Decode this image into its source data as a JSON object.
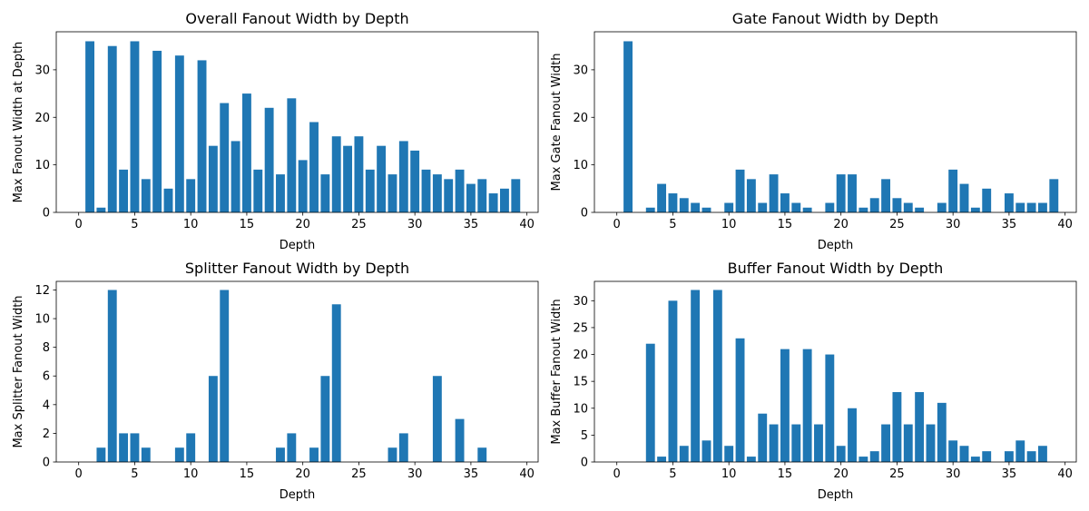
{
  "chart_data": [
    {
      "type": "bar",
      "title": "Overall Fanout Width by Depth",
      "xlabel": "Depth",
      "ylabel": "Max Fanout Width at Depth",
      "xlim": [
        -2,
        41
      ],
      "ylim": [
        0,
        38
      ],
      "xticks": [
        0,
        5,
        10,
        15,
        20,
        25,
        30,
        35,
        40
      ],
      "yticks": [
        0,
        10,
        20,
        30
      ],
      "x": [
        1,
        2,
        3,
        4,
        5,
        6,
        7,
        8,
        9,
        10,
        11,
        12,
        13,
        14,
        15,
        16,
        17,
        18,
        19,
        20,
        21,
        22,
        23,
        24,
        25,
        26,
        27,
        28,
        29,
        30,
        31,
        32,
        33,
        34,
        35,
        36,
        37,
        38,
        39
      ],
      "values": [
        36,
        1,
        35,
        9,
        36,
        7,
        34,
        5,
        33,
        7,
        32,
        14,
        23,
        15,
        25,
        9,
        22,
        8,
        24,
        11,
        19,
        8,
        16,
        14,
        16,
        9,
        14,
        8,
        15,
        13,
        9,
        8,
        7,
        9,
        6,
        7,
        4,
        5,
        7
      ],
      "color": "#1f77b4"
    },
    {
      "type": "bar",
      "title": "Gate Fanout Width by Depth",
      "xlabel": "Depth",
      "ylabel": "Max Gate Fanout Width",
      "xlim": [
        -2,
        41
      ],
      "ylim": [
        0,
        38
      ],
      "xticks": [
        0,
        5,
        10,
        15,
        20,
        25,
        30,
        35,
        40
      ],
      "yticks": [
        0,
        10,
        20,
        30
      ],
      "x": [
        1,
        2,
        3,
        4,
        5,
        6,
        7,
        8,
        9,
        10,
        11,
        12,
        13,
        14,
        15,
        16,
        17,
        18,
        19,
        20,
        21,
        22,
        23,
        24,
        25,
        26,
        27,
        28,
        29,
        30,
        31,
        32,
        33,
        34,
        35,
        36,
        37,
        38,
        39
      ],
      "values": [
        36,
        0,
        1,
        6,
        4,
        3,
        2,
        1,
        0,
        2,
        9,
        7,
        2,
        8,
        4,
        2,
        1,
        0,
        2,
        8,
        8,
        1,
        3,
        7,
        3,
        2,
        1,
        0,
        2,
        9,
        6,
        1,
        5,
        0,
        4,
        2,
        2,
        2,
        7
      ],
      "color": "#1f77b4"
    },
    {
      "type": "bar",
      "title": "Splitter Fanout Width by Depth",
      "xlabel": "Depth",
      "ylabel": "Max Splitter Fanout Width",
      "xlim": [
        -2,
        41
      ],
      "ylim": [
        0,
        12.6
      ],
      "xticks": [
        0,
        5,
        10,
        15,
        20,
        25,
        30,
        35,
        40
      ],
      "yticks": [
        0,
        2,
        4,
        6,
        8,
        10,
        12
      ],
      "x": [
        1,
        2,
        3,
        4,
        5,
        6,
        7,
        8,
        9,
        10,
        11,
        12,
        13,
        14,
        15,
        16,
        17,
        18,
        19,
        20,
        21,
        22,
        23,
        24,
        25,
        26,
        27,
        28,
        29,
        30,
        31,
        32,
        33,
        34,
        35,
        36,
        37,
        38,
        39
      ],
      "values": [
        0,
        1,
        12,
        2,
        2,
        1,
        0,
        0,
        1,
        2,
        0,
        6,
        12,
        0,
        0,
        0,
        0,
        1,
        2,
        0,
        1,
        6,
        11,
        0,
        0,
        0,
        0,
        1,
        2,
        0,
        0,
        6,
        0,
        3,
        0,
        1,
        0,
        0,
        0
      ],
      "color": "#1f77b4"
    },
    {
      "type": "bar",
      "title": "Buffer Fanout Width by Depth",
      "xlabel": "Depth",
      "ylabel": "Max Buffer Fanout Width",
      "xlim": [
        -2,
        41
      ],
      "ylim": [
        0,
        33.6
      ],
      "xticks": [
        0,
        5,
        10,
        15,
        20,
        25,
        30,
        35,
        40
      ],
      "yticks": [
        0,
        5,
        10,
        15,
        20,
        25,
        30
      ],
      "x": [
        1,
        2,
        3,
        4,
        5,
        6,
        7,
        8,
        9,
        10,
        11,
        12,
        13,
        14,
        15,
        16,
        17,
        18,
        19,
        20,
        21,
        22,
        23,
        24,
        25,
        26,
        27,
        28,
        29,
        30,
        31,
        32,
        33,
        34,
        35,
        36,
        37,
        38,
        39
      ],
      "values": [
        0,
        0,
        22,
        1,
        30,
        3,
        32,
        4,
        32,
        3,
        23,
        1,
        9,
        7,
        21,
        7,
        21,
        7,
        20,
        3,
        10,
        1,
        2,
        7,
        13,
        7,
        13,
        7,
        11,
        4,
        3,
        1,
        2,
        0,
        2,
        4,
        2,
        3,
        0
      ],
      "color": "#1f77b4"
    }
  ]
}
